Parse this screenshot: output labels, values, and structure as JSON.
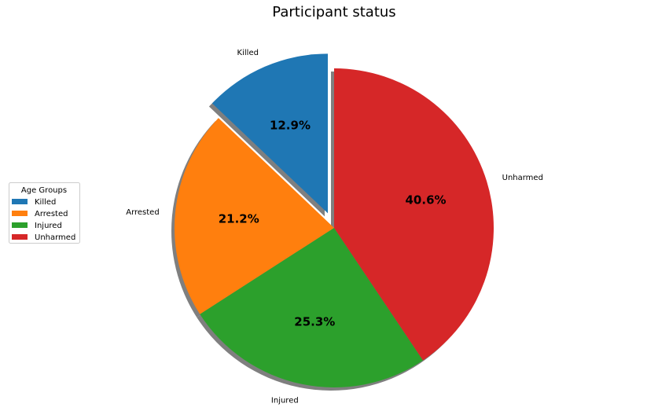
{
  "chart_data": {
    "type": "pie",
    "title": "Participant status",
    "categories": [
      "Killed",
      "Arrested",
      "Injured",
      "Unharmed"
    ],
    "values": [
      12.9,
      21.2,
      25.3,
      40.6
    ],
    "percent_labels": [
      "12.9%",
      "21.2%",
      "25.3%",
      "40.6%"
    ],
    "colors": [
      "#1f77b4",
      "#ff7f0e",
      "#2ca02c",
      "#d62728"
    ],
    "exploded": [
      true,
      false,
      false,
      false
    ],
    "shadow": true,
    "start_angle_deg": 90,
    "legend": {
      "title": "Age Groups",
      "placement": "center-left",
      "entries": [
        "Killed",
        "Arrested",
        "Injured",
        "Unharmed"
      ]
    }
  }
}
